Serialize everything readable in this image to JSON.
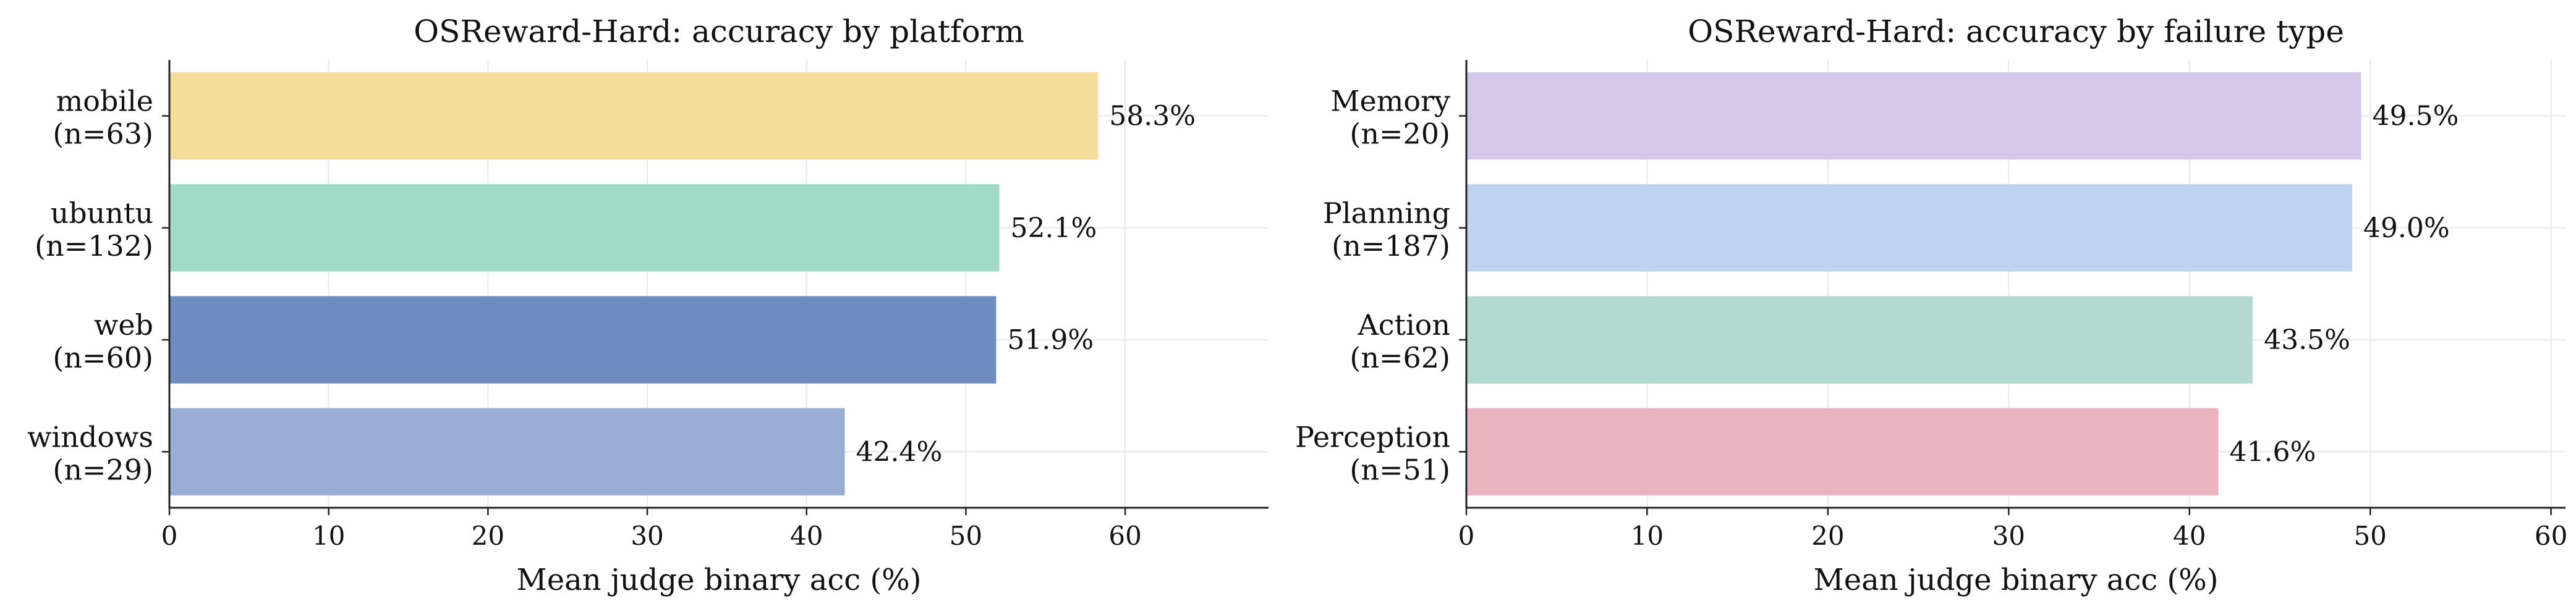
{
  "chart_data": [
    {
      "type": "bar",
      "orientation": "horizontal",
      "title": "OSReward-Hard: accuracy by platform",
      "xlabel": "Mean judge binary acc (%)",
      "ylabel": "",
      "categories": [
        "mobile\n(n=63)",
        "ubuntu\n(n=132)",
        "web\n(n=60)",
        "windows\n(n=29)"
      ],
      "values": [
        58.3,
        52.1,
        51.9,
        42.4
      ],
      "value_labels": [
        "58.3%",
        "52.1%",
        "51.9%",
        "42.4%"
      ],
      "colors": [
        "#f5de9b",
        "#a1dbc8",
        "#6e8cc0",
        "#9aaed5"
      ],
      "xlim": [
        0,
        69
      ],
      "xticks": [
        0,
        10,
        20,
        30,
        40,
        50,
        60
      ],
      "grid": true
    },
    {
      "type": "bar",
      "orientation": "horizontal",
      "title": "OSReward-Hard: accuracy by failure type",
      "xlabel": "Mean judge binary acc (%)",
      "ylabel": "",
      "categories": [
        "Memory\n(n=20)",
        "Planning\n(n=187)",
        "Action\n(n=62)",
        "Perception\n(n=51)"
      ],
      "values": [
        49.5,
        49.0,
        43.5,
        41.6
      ],
      "value_labels": [
        "49.5%",
        "49.0%",
        "43.5%",
        "41.6%"
      ],
      "colors": [
        "#d5c7ea",
        "#bfd2ef",
        "#b4d9d2",
        "#eab4bf"
      ],
      "xlim": [
        0,
        60.8
      ],
      "xticks": [
        0,
        10,
        20,
        30,
        40,
        50,
        60
      ],
      "grid": true
    }
  ]
}
